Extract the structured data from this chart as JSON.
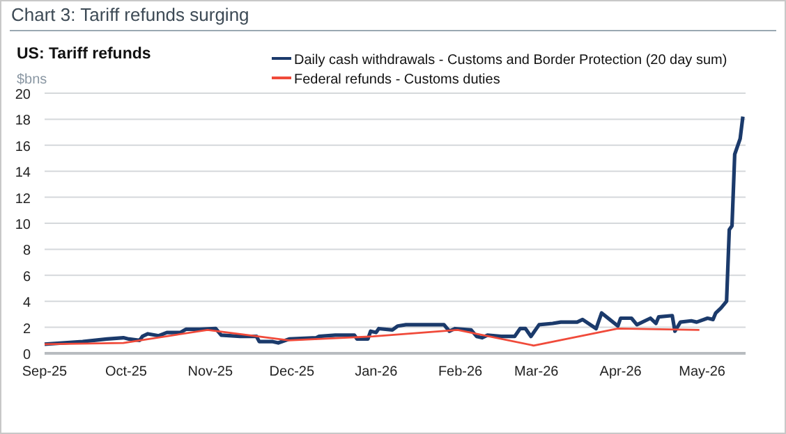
{
  "chart_data": {
    "type": "line",
    "title": "Chart 3: Tariff refunds surging",
    "subtitle": "US: Tariff refunds",
    "ylabel": "$bns",
    "xlim": [
      "2025-09-01",
      "2026-05-17"
    ],
    "xticks": [
      {
        "value": "2025-09-01",
        "label": "Sep-25"
      },
      {
        "value": "2025-10-01",
        "label": "Oct-25"
      },
      {
        "value": "2025-11-01",
        "label": "Nov-25"
      },
      {
        "value": "2025-12-01",
        "label": "Dec-25"
      },
      {
        "value": "2026-01-01",
        "label": "Jan-26"
      },
      {
        "value": "2026-02-01",
        "label": "Feb-26"
      },
      {
        "value": "2026-03-01",
        "label": "Mar-26"
      },
      {
        "value": "2026-04-01",
        "label": "Apr-26"
      },
      {
        "value": "2026-05-01",
        "label": "May-26"
      }
    ],
    "ylim": [
      0,
      20
    ],
    "yticks": [
      0,
      2,
      4,
      6,
      8,
      10,
      12,
      14,
      16,
      18,
      20
    ],
    "grid": "y",
    "legend": "top right",
    "marker": "none",
    "line_style": "solid",
    "series": [
      {
        "name": "Daily cash withdrawals - Customs and Border Protection (20 day sum)",
        "color": "#1b3a6b",
        "x": [
          "2025-09-01",
          "2025-09-15",
          "2025-09-24",
          "2025-09-30",
          "2025-10-02",
          "2025-10-06",
          "2025-10-07",
          "2025-10-09",
          "2025-10-13",
          "2025-10-16",
          "2025-10-21",
          "2025-10-23",
          "2025-10-28",
          "2025-11-03",
          "2025-11-05",
          "2025-11-12",
          "2025-11-18",
          "2025-11-19",
          "2025-11-24",
          "2025-11-26",
          "2025-11-30",
          "2025-12-10",
          "2025-12-11",
          "2025-12-17",
          "2025-12-24",
          "2025-12-25",
          "2025-12-29",
          "2025-12-30",
          "2026-01-01",
          "2026-01-02",
          "2026-01-07",
          "2026-01-09",
          "2026-01-12",
          "2026-01-23",
          "2026-01-26",
          "2026-01-28",
          "2026-01-30",
          "2026-02-05",
          "2026-02-07",
          "2026-02-09",
          "2026-02-11",
          "2026-02-16",
          "2026-02-21",
          "2026-02-23",
          "2026-02-25",
          "2026-02-27",
          "2026-03-02",
          "2026-03-07",
          "2026-03-10",
          "2026-03-16",
          "2026-03-18",
          "2026-03-23",
          "2026-03-25",
          "2026-03-28",
          "2026-03-31",
          "2026-04-01",
          "2026-04-05",
          "2026-04-07",
          "2026-04-12",
          "2026-04-14",
          "2026-04-15",
          "2026-04-20",
          "2026-04-21",
          "2026-04-23",
          "2026-04-27",
          "2026-04-29",
          "2026-05-03",
          "2026-05-05",
          "2026-05-06",
          "2026-05-08",
          "2026-05-10",
          "2026-05-11",
          "2026-05-12",
          "2026-05-13",
          "2026-05-15",
          "2026-05-16"
        ],
        "values": [
          0.7,
          0.9,
          1.1,
          1.2,
          1.1,
          1.0,
          1.3,
          1.5,
          1.35,
          1.6,
          1.6,
          1.85,
          1.85,
          1.9,
          1.4,
          1.3,
          1.3,
          0.9,
          0.9,
          0.8,
          1.1,
          1.2,
          1.3,
          1.4,
          1.4,
          1.1,
          1.1,
          1.7,
          1.6,
          1.9,
          1.8,
          2.1,
          2.2,
          2.2,
          2.2,
          1.7,
          1.9,
          1.8,
          1.3,
          1.2,
          1.4,
          1.3,
          1.3,
          1.9,
          1.9,
          1.3,
          2.2,
          2.3,
          2.4,
          2.4,
          2.6,
          1.9,
          3.1,
          2.6,
          2.1,
          2.7,
          2.7,
          2.2,
          2.7,
          2.3,
          2.8,
          2.9,
          1.7,
          2.4,
          2.5,
          2.4,
          2.7,
          2.6,
          3.1,
          3.5,
          4.0,
          9.5,
          9.8,
          15.3,
          16.5,
          18.2
        ]
      },
      {
        "name": "Federal refunds - Customs duties",
        "color": "#f04a3a",
        "x": [
          "2025-09-01",
          "2025-09-30",
          "2025-10-31",
          "2025-11-30",
          "2025-12-31",
          "2026-01-31",
          "2026-02-28",
          "2026-03-31",
          "2026-04-30"
        ],
        "values": [
          0.7,
          0.8,
          1.8,
          1.0,
          1.3,
          1.8,
          0.6,
          1.9,
          1.8
        ]
      }
    ]
  }
}
